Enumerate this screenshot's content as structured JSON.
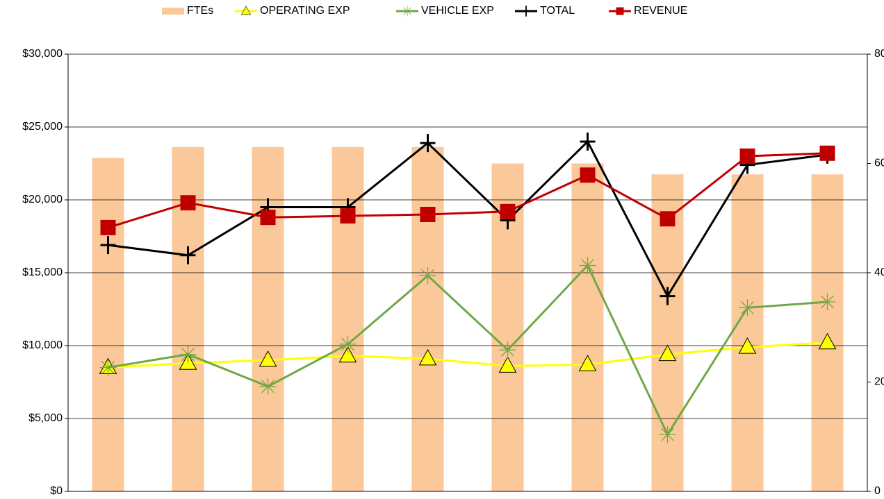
{
  "chart_data": {
    "type": "bar-line",
    "categories": [
      null,
      null,
      null,
      null,
      null,
      null,
      null,
      null,
      null,
      null
    ],
    "series": [
      {
        "name": "FTEs",
        "type": "bar",
        "axis": "y2",
        "color": "#fbc89a",
        "values": [
          61,
          63,
          63,
          63,
          63,
          60,
          60,
          58,
          58,
          58
        ]
      },
      {
        "name": "OPERATING EXP",
        "type": "line",
        "marker": "triangle",
        "color": "#ffff00",
        "values": [
          8500,
          8800,
          9000,
          9300,
          9100,
          8600,
          8700,
          9400,
          9900,
          10200
        ]
      },
      {
        "name": "VEHICLE EXP",
        "type": "line",
        "marker": "asterisk",
        "color": "#70a845",
        "values": [
          8500,
          9400,
          7200,
          10100,
          14800,
          9700,
          15500,
          3900,
          12600,
          13000
        ]
      },
      {
        "name": "TOTAL",
        "type": "line",
        "marker": "plus",
        "color": "#000000",
        "values": [
          16900,
          16200,
          19500,
          19500,
          23900,
          18600,
          24000,
          13400,
          22400,
          23100
        ]
      },
      {
        "name": "REVENUE",
        "type": "line",
        "marker": "square",
        "color": "#c00000",
        "values": [
          18100,
          19800,
          18800,
          18900,
          19000,
          19200,
          21700,
          18700,
          23000,
          23200
        ]
      }
    ],
    "ylim": [
      0,
      30000
    ],
    "yticks": [
      {
        "value": 0,
        "label": "$0"
      },
      {
        "value": 5000,
        "label": "$5,000"
      },
      {
        "value": 10000,
        "label": "$10,000"
      },
      {
        "value": 15000,
        "label": "$15,000"
      },
      {
        "value": 20000,
        "label": "$20,000"
      },
      {
        "value": 25000,
        "label": "$25,000"
      },
      {
        "value": 30000,
        "label": "$30,000"
      }
    ],
    "y2lim": [
      0,
      80
    ],
    "y2ticks": [
      0,
      20,
      40,
      60,
      80
    ],
    "grid": true,
    "legend": "top"
  }
}
